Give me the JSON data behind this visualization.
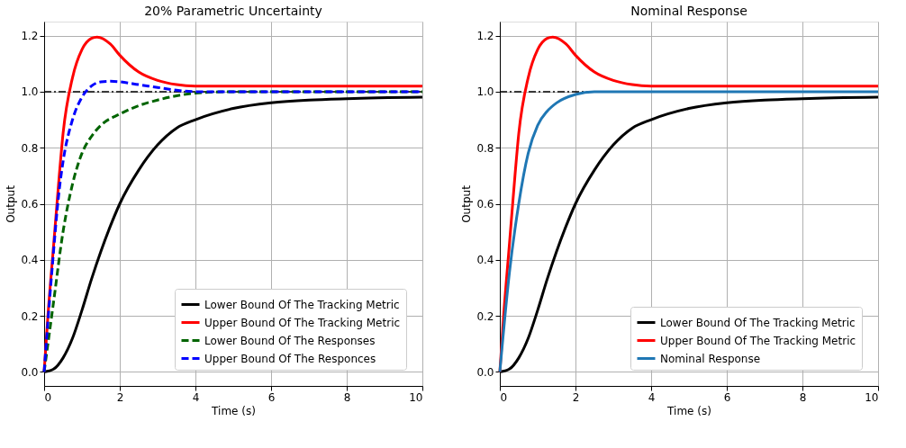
{
  "chart_data": [
    {
      "type": "line",
      "title": "20% Parametric Uncertainty",
      "xlabel": "Time (s)",
      "ylabel": "Output",
      "xlim": [
        0,
        10
      ],
      "xticks": [
        0,
        2,
        4,
        6,
        8,
        10
      ],
      "ylim": [
        -0.05,
        1.25
      ],
      "yticks": [
        {
          "value": 0,
          "label": "0.0"
        },
        {
          "value": 0.2,
          "label": "0.2"
        },
        {
          "value": 0.4,
          "label": "0.4"
        },
        {
          "value": 0.6,
          "label": "0.6"
        },
        {
          "value": 0.8,
          "label": "0.8"
        },
        {
          "value": 1.0,
          "label": "1.0"
        },
        {
          "value": 1.2,
          "label": "1.2"
        }
      ],
      "grid": true,
      "legend": "bottom right",
      "ref_lines": [
        {
          "axis": "y",
          "value": 1.0,
          "color": "#000000",
          "line_style": "dashdot"
        }
      ],
      "series": [
        {
          "name": "Lower Bound Of The Tracking Metric",
          "color": "#000000",
          "line_style": "solid",
          "x": [
            0,
            0.25,
            0.5,
            0.75,
            1,
            1.25,
            1.5,
            1.75,
            2,
            2.5,
            3,
            3.5,
            4,
            5,
            6,
            7,
            8,
            10
          ],
          "values": [
            0,
            0.01,
            0.05,
            0.12,
            0.22,
            0.33,
            0.43,
            0.52,
            0.6,
            0.72,
            0.81,
            0.87,
            0.9,
            0.94,
            0.96,
            0.97,
            0.975,
            0.98
          ]
        },
        {
          "name": "Upper Bound Of The Tracking Metric",
          "color": "#ff0000",
          "line_style": "solid",
          "x": [
            0,
            0.1,
            0.25,
            0.4,
            0.5,
            0.75,
            1,
            1.25,
            1.4,
            1.75,
            2,
            2.5,
            3,
            3.5,
            4,
            10
          ],
          "values": [
            0,
            0.2,
            0.45,
            0.7,
            0.85,
            1.05,
            1.15,
            1.19,
            1.195,
            1.17,
            1.13,
            1.07,
            1.04,
            1.025,
            1.02,
            1.02
          ]
        },
        {
          "name": "Lower Bound Of The Responses",
          "color": "#006400",
          "line_style": "dashed",
          "x": [
            0,
            0.25,
            0.5,
            0.75,
            1,
            1.25,
            1.5,
            2,
            2.5,
            3,
            3.5,
            4,
            5,
            10
          ],
          "values": [
            0,
            0.25,
            0.5,
            0.67,
            0.78,
            0.84,
            0.88,
            0.92,
            0.95,
            0.97,
            0.985,
            0.995,
            1.0,
            1.0
          ]
        },
        {
          "name": "Upper Bound Of The Responces",
          "color": "#0000ff",
          "line_style": "dashed",
          "x": [
            0,
            0.2,
            0.4,
            0.5,
            0.75,
            1,
            1.25,
            1.5,
            1.75,
            2,
            2.5,
            3,
            3.5,
            4,
            10
          ],
          "values": [
            0,
            0.35,
            0.65,
            0.75,
            0.9,
            0.98,
            1.02,
            1.035,
            1.037,
            1.035,
            1.025,
            1.015,
            1.005,
            1.0,
            1.0
          ]
        }
      ]
    },
    {
      "type": "line",
      "title": "Nominal Response",
      "xlabel": "Time (s)",
      "ylabel": "Output",
      "xlim": [
        0,
        10
      ],
      "xticks": [
        0,
        2,
        4,
        6,
        8,
        10
      ],
      "ylim": [
        -0.05,
        1.25
      ],
      "yticks": [
        {
          "value": 0,
          "label": "0.0"
        },
        {
          "value": 0.2,
          "label": "0.2"
        },
        {
          "value": 0.4,
          "label": "0.4"
        },
        {
          "value": 0.6,
          "label": "0.6"
        },
        {
          "value": 0.8,
          "label": "0.8"
        },
        {
          "value": 1.0,
          "label": "1.0"
        },
        {
          "value": 1.2,
          "label": "1.2"
        }
      ],
      "grid": true,
      "legend": "bottom right",
      "ref_lines": [
        {
          "axis": "y",
          "value": 1.0,
          "color": "#000000",
          "line_style": "dashdot"
        }
      ],
      "series": [
        {
          "name": "Lower Bound Of The Tracking Metric",
          "color": "#000000",
          "line_style": "solid",
          "x": [
            0,
            0.25,
            0.5,
            0.75,
            1,
            1.25,
            1.5,
            1.75,
            2,
            2.5,
            3,
            3.5,
            4,
            5,
            6,
            7,
            8,
            10
          ],
          "values": [
            0,
            0.01,
            0.05,
            0.12,
            0.22,
            0.33,
            0.43,
            0.52,
            0.6,
            0.72,
            0.81,
            0.87,
            0.9,
            0.94,
            0.96,
            0.97,
            0.975,
            0.98
          ]
        },
        {
          "name": "Upper Bound Of The Tracking Metric",
          "color": "#ff0000",
          "line_style": "solid",
          "x": [
            0,
            0.1,
            0.25,
            0.4,
            0.5,
            0.75,
            1,
            1.25,
            1.4,
            1.75,
            2,
            2.5,
            3,
            3.5,
            4,
            10
          ],
          "values": [
            0,
            0.2,
            0.45,
            0.7,
            0.85,
            1.05,
            1.15,
            1.19,
            1.195,
            1.17,
            1.13,
            1.07,
            1.04,
            1.025,
            1.02,
            1.02
          ]
        },
        {
          "name": "Nominal Response",
          "color": "#1f77b4",
          "line_style": "solid",
          "x": [
            0,
            0.25,
            0.5,
            0.75,
            1,
            1.25,
            1.5,
            2,
            2.5,
            10
          ],
          "values": [
            0,
            0.35,
            0.6,
            0.78,
            0.88,
            0.93,
            0.96,
            0.99,
            1.0,
            1.0
          ]
        }
      ]
    }
  ]
}
